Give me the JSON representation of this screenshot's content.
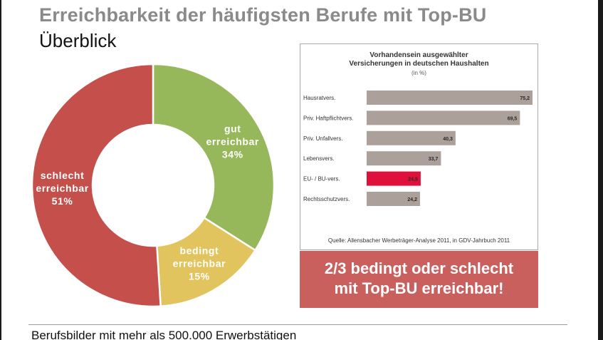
{
  "title": "Erreichbarkeit der häufigsten Berufe mit Top-BU",
  "subtitle": "Überblick",
  "chart_data": [
    {
      "type": "pie",
      "donut": true,
      "slices": [
        {
          "label_lines": [
            "gut",
            "erreichbar"
          ],
          "percent_label": "34%",
          "value": 34,
          "color": "#97b85a"
        },
        {
          "label_lines": [
            "bedingt",
            "erreichbar"
          ],
          "percent_label": "15%",
          "value": 15,
          "color": "#e2c45e"
        },
        {
          "label_lines": [
            "schlecht",
            "erreichbar"
          ],
          "percent_label": "51%",
          "value": 51,
          "color": "#c5504b"
        }
      ]
    },
    {
      "type": "bar",
      "orientation": "horizontal",
      "title_lines": [
        "Vorhandensein ausgewählter",
        "Versicherungen in deutschen Haushalten"
      ],
      "unit": "(in %)",
      "xlim": [
        0,
        75.2
      ],
      "bars": [
        {
          "category": "Hausratvers.",
          "value": 75.2,
          "label": "75,2",
          "color": "#aba09a"
        },
        {
          "category": "Priv. Haftpflichtvers.",
          "value": 69.5,
          "label": "69,5",
          "color": "#aba09a"
        },
        {
          "category": "Priv. Unfallvers.",
          "value": 40.3,
          "label": "40,3",
          "color": "#aba09a"
        },
        {
          "category": "Lebensvers.",
          "value": 33.7,
          "label": "33,7",
          "color": "#aba09a"
        },
        {
          "category": "EU- / BU-vers.",
          "value": 24.5,
          "label": "24,5",
          "color": "#e0103c"
        },
        {
          "category": "Rechtsschutzvers.",
          "value": 24.2,
          "label": "24,2",
          "color": "#aba09a"
        }
      ],
      "source": "Quelle: Allensbacher Werbeträger-Analyse 2011, in GDV-Jahrbuch 2011"
    }
  ],
  "callout": {
    "line1": "2/3 bedingt oder schlecht",
    "line2": "mit Top-BU erreichbar!"
  },
  "footer": "Berufsbilder mit mehr als 500.000 Erwerbstätigen"
}
